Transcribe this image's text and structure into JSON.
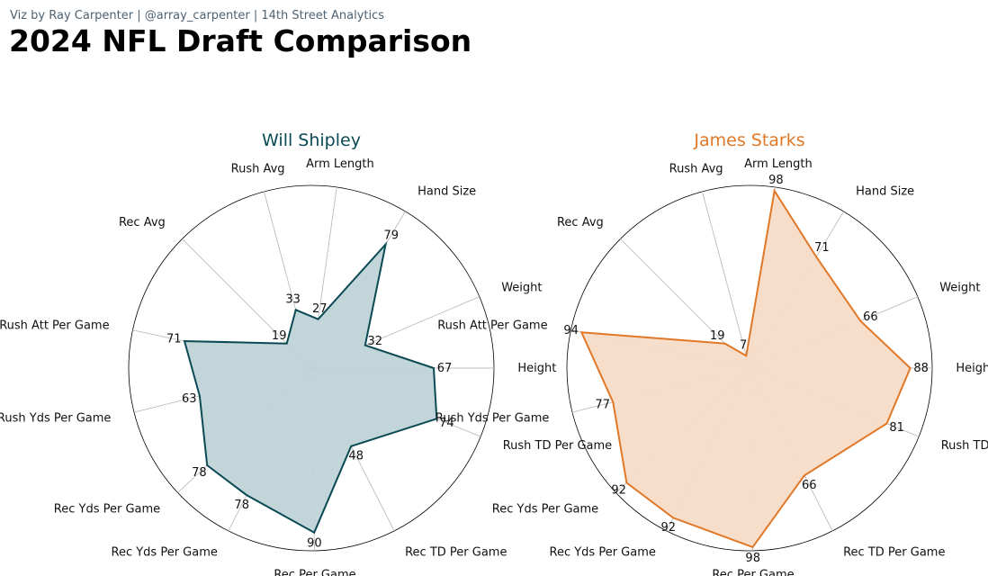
{
  "header": {
    "credit": "Viz by Ray Carpenter | @array_carpenter | 14th Street Analytics",
    "title": "2024 NFL Draft Comparison"
  },
  "chart_data": [
    {
      "type": "radar",
      "title": "Will Shipley",
      "color": "#0b4a55",
      "fill": "#bfd3d6",
      "axes": [
        "Height",
        "Weight",
        "Hand Size",
        "Arm Length",
        "Rush Avg",
        "Rec Avg",
        "Rush Att Per Game",
        "Rush Yds Per Game",
        "Rec Yds Per Game",
        "Rec Yds Per Game",
        "Rec Per Game",
        "Rec TD Per Game",
        "Rush TD Per Game"
      ],
      "values": [
        67,
        32,
        79,
        27,
        33,
        19,
        71,
        63,
        78,
        78,
        90,
        48,
        74
      ],
      "rlim": [
        0,
        100
      ]
    },
    {
      "type": "radar",
      "title": "James Starks",
      "color": "#e07828",
      "fill": "#f7dcc8",
      "axes": [
        "Height",
        "Weight",
        "Hand Size",
        "Arm Length",
        "Rush Avg",
        "Rec Avg",
        "Rush Att Per Game",
        "Rush Yds Per Game",
        "Rec Yds Per Game",
        "Rec Yds Per Game",
        "Rec Per Game",
        "Rec TD Per Game",
        "Rush TD Per Game"
      ],
      "values": [
        88,
        66,
        71,
        98,
        7,
        19,
        94,
        77,
        92,
        92,
        98,
        66,
        81
      ],
      "rlim": [
        0,
        100
      ]
    }
  ]
}
